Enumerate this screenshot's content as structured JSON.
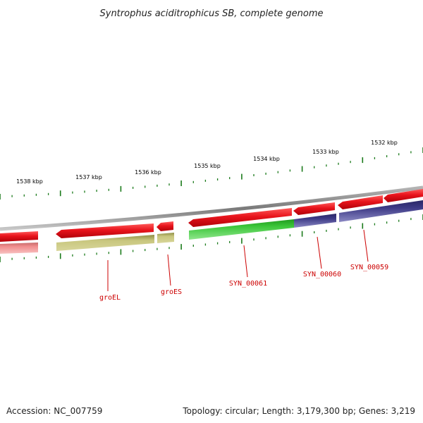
{
  "title": "Syntrophus aciditrophicus SB, complete genome",
  "footer": {
    "accession": "Accession: NC_007759",
    "summary": "Topology: circular; Length: 3,179,300 bp; Genes: 3,219"
  },
  "ruler": {
    "labels": [
      "1538 kbp",
      "1537 kbp",
      "1536 kbp",
      "1535 kbp",
      "1534 kbp",
      "1533 kbp",
      "1532 kbp"
    ]
  },
  "gene_labels": [
    "groEL",
    "groES",
    "SYN_00061",
    "SYN_00060",
    "SYN_00059"
  ],
  "colors": {
    "forward_gene": "#e8141c",
    "cds_olive": "#b5b46a",
    "cds_green": "#3cc63a",
    "cds_navy": "#3d3a86",
    "cds_pink": "#f08c8c",
    "backbone": "#8a8a8a",
    "tick": "#1a7a1a",
    "label": "#cc0000"
  }
}
